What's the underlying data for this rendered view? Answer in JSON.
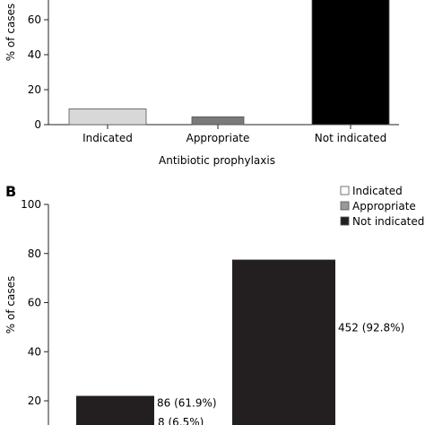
{
  "chart_data": [
    {
      "panel": "",
      "type": "bar",
      "categories": [
        "Indicated",
        "Appropriate",
        "Not indicated"
      ],
      "values": [
        9,
        4.5,
        75
      ],
      "colors": [
        "#d8d8d8",
        "#7a7a7a",
        "#000000"
      ],
      "ylabel": "% of cases",
      "xlabel": "Antibiotic prophylaxis",
      "yticks": [
        0,
        20,
        40,
        60
      ],
      "ylim": [
        0,
        70
      ],
      "grid": false,
      "legend": null
    },
    {
      "panel": "B",
      "type": "bar",
      "categories": [
        "",
        ""
      ],
      "values": [
        22,
        77.5
      ],
      "colors": [
        "#231f20",
        "#231f20"
      ],
      "data_labels": [
        "86 (61.9%)",
        "452 (92.8%)"
      ],
      "extra_label": "8 (6.5%)",
      "ylabel": "% of cases",
      "xlabel": "",
      "yticks": [
        20,
        40,
        60,
        80,
        100
      ],
      "ylim": [
        0,
        100
      ],
      "grid": false,
      "legend": {
        "position": "top-right",
        "entries": [
          {
            "label": "Indicated",
            "color": "#ffffff"
          },
          {
            "label": "Appropriate",
            "color": "#9a9a9a"
          },
          {
            "label": "Not indicated",
            "color": "#231f20"
          }
        ]
      }
    }
  ]
}
